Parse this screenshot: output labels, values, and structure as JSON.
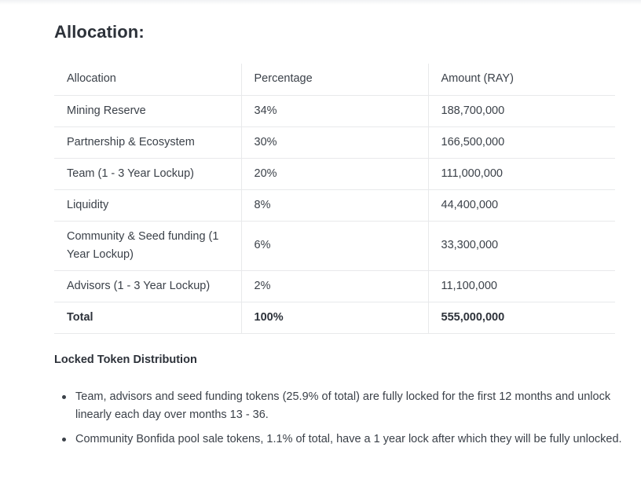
{
  "heading": "Allocation:",
  "table": {
    "headers": [
      "Allocation",
      "Percentage",
      "Amount (RAY)"
    ],
    "rows": [
      [
        "Mining Reserve",
        "34%",
        "188,700,000"
      ],
      [
        "Partnership & Ecosystem",
        "30%",
        "166,500,000"
      ],
      [
        "Team (1 - 3 Year Lockup)",
        "20%",
        "111,000,000"
      ],
      [
        "Liquidity",
        "8%",
        "44,400,000"
      ],
      [
        "Community & Seed funding (1 Year Lockup)",
        "6%",
        "33,300,000"
      ],
      [
        "Advisors (1 - 3 Year Lockup)",
        "2%",
        "11,100,000"
      ]
    ],
    "total": [
      "Total",
      "100%",
      "555,000,000"
    ]
  },
  "locked": {
    "title": "Locked Token Distribution",
    "bullets": [
      "Team, advisors and seed funding tokens (25.9% of total) are fully locked for the first 12 months and unlock linearly each day over months 13 - 36.",
      "Community Bonfida pool sale tokens, 1.1% of total, have a 1 year lock after which they will be fully unlocked."
    ]
  }
}
